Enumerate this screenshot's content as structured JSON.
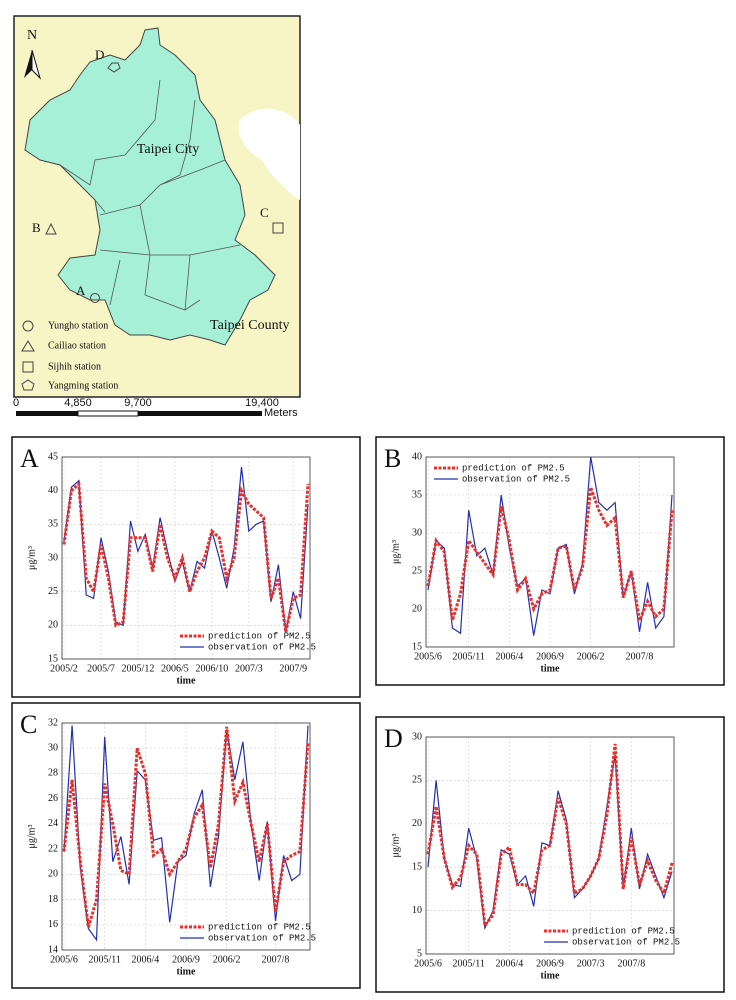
{
  "map": {
    "north": "N",
    "labels": {
      "d": "D",
      "city": "Taipei City",
      "b": "B",
      "c": "C",
      "a": "A",
      "county": "Taipei County"
    },
    "legend": [
      "Yungho station",
      "Cailiao station",
      "Sijhih station",
      "Yangming station"
    ],
    "scale": [
      "0",
      "4,850",
      "9,700",
      "19,400"
    ],
    "scale_unit": "Meters"
  },
  "chart_data": [
    {
      "type": "line",
      "panel": "A",
      "xlabel": "time",
      "ylabel": "μg/m³",
      "categories": [
        "2005/2",
        null,
        null,
        null,
        null,
        "2005/7",
        null,
        null,
        null,
        null,
        "2005/12",
        null,
        null,
        null,
        null,
        "2006/5",
        null,
        null,
        null,
        null,
        "2006/10",
        null,
        null,
        null,
        null,
        "2007/3",
        null,
        null,
        null,
        null,
        null,
        "2007/9",
        null,
        null
      ],
      "series": [
        {
          "name": "prediction of PM2.5",
          "color": "#e8302a",
          "values": [
            32,
            40,
            41,
            27,
            25,
            32,
            27,
            20,
            20.5,
            33,
            33,
            33,
            28,
            35,
            30,
            27,
            30,
            25,
            28,
            30,
            34,
            33,
            27,
            30,
            40,
            38,
            37,
            36,
            24,
            27,
            19,
            24,
            24.5,
            41
          ]
        },
        {
          "name": "observation of PM2.5",
          "color": "#2230b0",
          "values": [
            32.5,
            40.5,
            41.5,
            24.5,
            24,
            33,
            28,
            20.5,
            20,
            35.5,
            31,
            33.5,
            28.5,
            36,
            31,
            26.5,
            29.5,
            25,
            29.5,
            28.5,
            34,
            30,
            25.5,
            31.5,
            43.5,
            34,
            35,
            35.5,
            23.5,
            29,
            19,
            25,
            21,
            38
          ]
        }
      ],
      "ylim": [
        15,
        45
      ],
      "yticks": [
        15,
        20,
        25,
        30,
        35,
        40,
        45
      ],
      "grid": true,
      "legend": "lower right"
    },
    {
      "type": "line",
      "panel": "B",
      "xlabel": "time",
      "ylabel": "μg/m³",
      "categories": [
        "2005/6",
        null,
        null,
        null,
        null,
        "2005/11",
        null,
        null,
        null,
        null,
        "2006/4",
        null,
        null,
        null,
        null,
        "2006/9",
        null,
        null,
        null,
        null,
        "2006/2",
        null,
        null,
        null,
        null,
        null,
        "2007/8",
        null,
        null,
        null,
        null
      ],
      "series": [
        {
          "name": "prediction of PM2.5",
          "color": "#e8302a",
          "values": [
            23,
            29,
            27.5,
            18.5,
            22,
            29,
            27.5,
            26,
            24.5,
            33.5,
            29,
            22.5,
            24,
            20,
            22,
            22.5,
            28,
            28.3,
            22.5,
            25.5,
            36,
            33,
            31,
            32,
            21.5,
            25,
            18.5,
            21,
            19,
            20,
            33
          ]
        },
        {
          "name": "observation of PM2.5",
          "color": "#2230b0",
          "values": [
            22.5,
            29,
            28,
            17.5,
            16.8,
            33,
            27,
            28,
            24.5,
            35,
            28,
            23,
            24,
            16.5,
            22.5,
            22,
            28,
            28.5,
            22,
            26,
            40,
            34,
            33,
            34,
            21.5,
            25,
            17,
            23.5,
            17.5,
            19,
            35
          ]
        }
      ],
      "ylim": [
        15,
        40
      ],
      "yticks": [
        15,
        20,
        25,
        30,
        35,
        40
      ],
      "grid": true,
      "legend": "upper left"
    },
    {
      "type": "line",
      "panel": "C",
      "xlabel": "time",
      "ylabel": "μg/m³",
      "categories": [
        "2005/6",
        null,
        null,
        null,
        null,
        "2005/11",
        null,
        null,
        null,
        null,
        "2006/4",
        null,
        null,
        null,
        null,
        "2006/9",
        null,
        null,
        null,
        null,
        "2006/2",
        null,
        null,
        null,
        null,
        null,
        "2007/8",
        null,
        null,
        null,
        null
      ],
      "series": [
        {
          "name": "prediction of PM2.5",
          "color": "#e8302a",
          "values": [
            21.8,
            27.5,
            21,
            15.8,
            18,
            27.2,
            24,
            20.3,
            20,
            30,
            28,
            21.5,
            22,
            20,
            21,
            22,
            24.5,
            25.5,
            20.5,
            24,
            31.7,
            25.8,
            27.3,
            24,
            21,
            24,
            17,
            21,
            21.5,
            21.8,
            30.5
          ]
        },
        {
          "name": "observation of PM2.5",
          "color": "#2230b0",
          "values": [
            21.8,
            31.8,
            20.5,
            15.7,
            14.8,
            30.9,
            21,
            23,
            19.2,
            28.2,
            27.5,
            22.7,
            22.9,
            16.2,
            21,
            21.5,
            24.8,
            26.7,
            19,
            23,
            31.5,
            27.5,
            30.5,
            24,
            19.5,
            24.2,
            16.3,
            21.5,
            19.5,
            20,
            31.8
          ]
        }
      ],
      "ylim": [
        14,
        32
      ],
      "yticks": [
        14,
        16,
        18,
        20,
        22,
        24,
        26,
        28,
        30,
        32
      ],
      "grid": true,
      "legend": "lower right"
    },
    {
      "type": "line",
      "panel": "D",
      "xlabel": "time",
      "ylabel": "μg/m³",
      "categories": [
        "2005/6",
        null,
        null,
        null,
        null,
        "2005/11",
        null,
        null,
        null,
        null,
        "2006/4",
        null,
        null,
        null,
        null,
        "2006/9",
        null,
        null,
        null,
        null,
        "2007/3",
        null,
        null,
        null,
        null,
        "2007/8",
        null,
        null,
        null,
        null,
        null
      ],
      "series": [
        {
          "name": "prediction of PM2.5",
          "color": "#e8302a",
          "values": [
            16.5,
            22,
            16,
            12.7,
            13.8,
            17.5,
            16.5,
            8.3,
            9.5,
            16.5,
            17.3,
            13,
            13,
            12,
            17,
            17.5,
            23,
            20,
            12,
            12.5,
            14,
            16,
            21,
            29.2,
            12.5,
            18.5,
            13,
            15.7,
            13.5,
            12,
            15.5
          ]
        },
        {
          "name": "observation of PM2.5",
          "color": "#2230b0",
          "values": [
            15,
            25,
            16,
            13,
            12.8,
            19.5,
            16,
            8,
            10,
            17,
            16.5,
            13,
            14,
            10.5,
            17.8,
            17.5,
            23.8,
            20.5,
            11.5,
            12.5,
            14,
            16,
            22,
            28,
            12.5,
            19.5,
            12.5,
            16.5,
            14,
            11.5,
            14.5
          ]
        }
      ],
      "ylim": [
        5,
        30
      ],
      "yticks": [
        5,
        10,
        15,
        20,
        25,
        30
      ],
      "grid": true,
      "legend": "lower right"
    }
  ]
}
